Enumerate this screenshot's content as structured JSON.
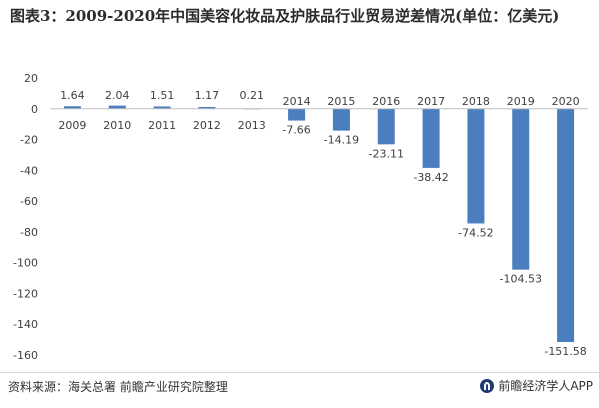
{
  "chart_data": {
    "type": "bar",
    "title": "图表3：2009-2020年中国美容化妆品及护肤品行业贸易逆差情况(单位：亿美元)",
    "categories": [
      "2009",
      "2010",
      "2011",
      "2012",
      "2013",
      "2014",
      "2015",
      "2016",
      "2017",
      "2018",
      "2019",
      "2020"
    ],
    "values": [
      1.64,
      2.04,
      1.51,
      1.17,
      0.21,
      -7.66,
      -14.19,
      -23.11,
      -38.42,
      -74.52,
      -104.53,
      -151.58
    ],
    "value_labels": [
      "1.64",
      "2.04",
      "1.51",
      "1.17",
      "0.21",
      "-7.66",
      "-14.19",
      "-23.11",
      "-38.42",
      "-74.52",
      "-104.53",
      "-151.58"
    ],
    "ylim": [
      -160,
      20
    ],
    "yticks": [
      20,
      0,
      -20,
      -40,
      -60,
      -80,
      -100,
      -120,
      -140,
      -160
    ],
    "grid": false,
    "legend": "none",
    "bar_color": "#4a7ebf",
    "axis_color": "#bfbfbf"
  },
  "footer": {
    "source": "资料来源：海关总署 前瞻产业研究院整理",
    "brand": "前瞻经济学人APP"
  }
}
